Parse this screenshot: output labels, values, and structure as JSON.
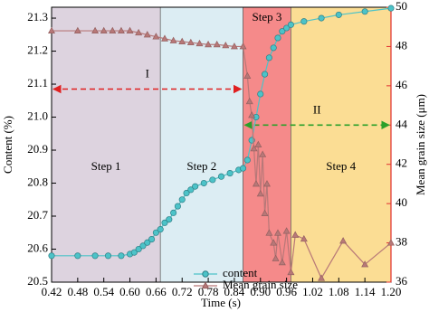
{
  "chart_data": {
    "type": "line",
    "x_label": "Time (s)",
    "y_label": "Content (%)",
    "y2_label": "Mean grain size (μm)",
    "xlim": [
      0.42,
      1.2
    ],
    "xticks": [
      0.42,
      0.48,
      0.54,
      {
        "value": 0.6,
        "label": "0.60"
      },
      0.66,
      0.72,
      0.78,
      0.84,
      {
        "value": 0.9,
        "label": "0.90"
      },
      0.96,
      1.02,
      1.08,
      1.14,
      {
        "value": 1.2,
        "label": "1.20"
      }
    ],
    "ylim": [
      20.5,
      21.333
    ],
    "yticks": [
      20.5,
      20.6,
      20.7,
      20.8,
      20.9,
      {
        "value": 21,
        "label": "21.0"
      },
      21.1,
      21.2,
      21.3
    ],
    "y2lim": [
      36,
      50
    ],
    "y2ticks": [
      36,
      38,
      40,
      42,
      44,
      46,
      48,
      50
    ],
    "y2_color": "#e03030",
    "regions": [
      {
        "label": "Step 1",
        "start": 0.42,
        "end": 0.67,
        "color": "#ddd3df"
      },
      {
        "label": "Step 2",
        "start": 0.67,
        "end": 0.86,
        "color": "#dcedf3"
      },
      {
        "label": "Step 3",
        "start": 0.86,
        "end": 0.97,
        "color": "#f58a8a"
      },
      {
        "label": "Step 4",
        "start": 0.97,
        "end": 1.2,
        "color": "#fbdd94"
      }
    ],
    "annotations": [
      {
        "label": "I",
        "start": 0.42,
        "end": 0.86,
        "y": 21.085,
        "color": "#e02020"
      },
      {
        "label": "II",
        "start": 0.86,
        "end": 1.2,
        "y2": 44,
        "color": "#2aa02a"
      }
    ],
    "series": [
      {
        "name": "content",
        "color": "#4cc3c8",
        "marker": "circle",
        "x": [
          0.42,
          0.48,
          0.52,
          0.55,
          0.58,
          0.6,
          0.61,
          0.62,
          0.63,
          0.64,
          0.65,
          0.66,
          0.67,
          0.68,
          0.69,
          0.7,
          0.71,
          0.72,
          0.73,
          0.74,
          0.75,
          0.77,
          0.79,
          0.81,
          0.83,
          0.85,
          0.86,
          0.87,
          0.88,
          0.89,
          0.9,
          0.91,
          0.92,
          0.93,
          0.94,
          0.95,
          0.96,
          0.97,
          1.0,
          1.04,
          1.08,
          1.14,
          1.2
        ],
        "values": [
          20.58,
          20.58,
          20.58,
          20.58,
          20.58,
          20.585,
          20.59,
          20.6,
          20.61,
          20.62,
          20.63,
          20.65,
          20.66,
          20.68,
          20.69,
          20.71,
          20.73,
          20.75,
          20.77,
          20.78,
          20.79,
          20.8,
          20.81,
          20.82,
          20.83,
          20.84,
          20.845,
          20.87,
          20.93,
          21.0,
          21.07,
          21.13,
          21.18,
          21.21,
          21.24,
          21.26,
          21.27,
          21.28,
          21.29,
          21.3,
          21.31,
          21.32,
          21.33
        ]
      },
      {
        "name": "Mean grain size",
        "color": "#b87878",
        "marker": "triangle",
        "axis": "y2",
        "x": [
          0.42,
          0.48,
          0.52,
          0.54,
          0.56,
          0.58,
          0.6,
          0.62,
          0.64,
          0.66,
          0.68,
          0.7,
          0.72,
          0.74,
          0.76,
          0.78,
          0.8,
          0.82,
          0.84,
          0.86,
          0.87,
          0.875,
          0.88,
          0.885,
          0.89,
          0.895,
          0.9,
          0.905,
          0.91,
          0.915,
          0.92,
          0.93,
          0.935,
          0.94,
          0.95,
          0.96,
          0.97,
          0.98,
          1.0,
          1.04,
          1.09,
          1.14,
          1.2
        ],
        "values": [
          48.8,
          48.8,
          48.8,
          48.8,
          48.8,
          48.8,
          48.8,
          48.7,
          48.6,
          48.5,
          48.4,
          48.3,
          48.25,
          48.2,
          48.15,
          48.1,
          48.1,
          48.05,
          48.0,
          48.0,
          46.5,
          45.2,
          44.5,
          42.8,
          41,
          43,
          40.5,
          42.5,
          39.5,
          41,
          38.5,
          38,
          37.2,
          38.5,
          37,
          38.6,
          36.5,
          38.4,
          38.2,
          36.2,
          38.1,
          36.9,
          38
        ]
      }
    ]
  }
}
